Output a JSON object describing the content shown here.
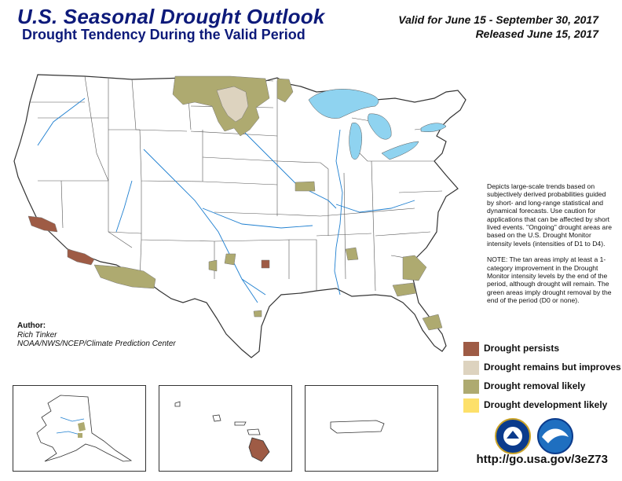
{
  "header": {
    "title": "U.S. Seasonal Drought Outlook",
    "subtitle": "Drought Tendency During the Valid Period",
    "valid": "Valid for June 15 - September 30, 2017",
    "released": "Released June 15, 2017"
  },
  "description": {
    "p1": "Depicts large-scale trends based on subjectively derived probabilities guided by short- and long-range statistical and dynamical forecasts. Use caution for applications that can be affected by short lived events. \"Ongoing\" drought areas are based on the U.S. Drought Monitor intensity levels (intensities of D1 to D4).",
    "p2": "NOTE: The tan areas imply at least a 1-category improvement in the Drought Monitor intensity levels by the end of the period, although drought will remain. The green areas imply drought removal by the end of the period (D0 or none)."
  },
  "author": {
    "label": "Author:",
    "name": "Rich Tinker",
    "org": "NOAA/NWS/NCEP/Climate Prediction Center"
  },
  "legend": [
    {
      "label": "Drought persists",
      "color": "#9e5b45"
    },
    {
      "label": "Drought remains but improves",
      "color": "#ddd3bf"
    },
    {
      "label": "Drought removal likely",
      "color": "#aeaa70"
    },
    {
      "label": "Drought development likely",
      "color": "#fde06a"
    }
  ],
  "colors": {
    "lakes": "#8fd3f0",
    "rivers": "#1e7fd0",
    "borders": "#555555"
  },
  "insets": [
    "Alaska",
    "Hawaii",
    "Puerto Rico"
  ],
  "logos": [
    "noaa-dept-commerce-seal-icon",
    "noaa-logo-icon"
  ],
  "url": "http://go.usa.gov/3eZ73"
}
